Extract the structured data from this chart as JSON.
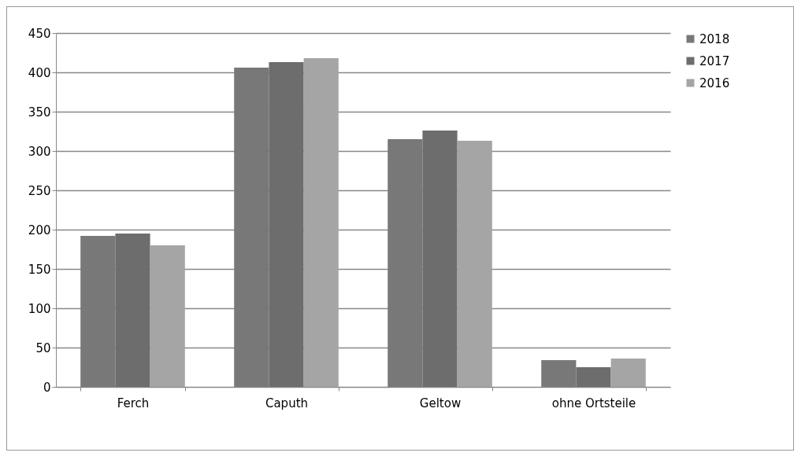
{
  "chart_data": {
    "type": "bar",
    "categories": [
      "Ferch",
      "Caputh",
      "Geltow",
      "ohne Ortsteile"
    ],
    "series": [
      {
        "name": "2018",
        "color": "#787878",
        "values": [
          192,
          406,
          315,
          34
        ]
      },
      {
        "name": "2017",
        "color": "#6d6d6d",
        "values": [
          195,
          413,
          326,
          25
        ]
      },
      {
        "name": "2016",
        "color": "#a5a5a5",
        "values": [
          180,
          418,
          313,
          36
        ]
      }
    ],
    "ylim": [
      0,
      450
    ],
    "yticks": [
      0,
      50,
      100,
      150,
      200,
      250,
      300,
      350,
      400,
      450
    ],
    "grid": "y",
    "legend": "right"
  }
}
